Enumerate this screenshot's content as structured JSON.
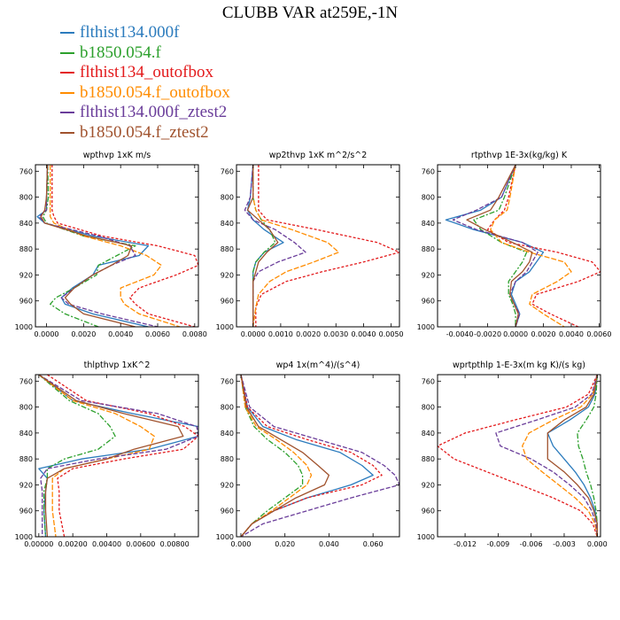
{
  "title": "CLUBB VAR at259E,-1N",
  "legend": [
    {
      "name": "flthist134.000f",
      "color": "#2b7bbd"
    },
    {
      "name": "b1850.054.f",
      "color": "#2ca02c"
    },
    {
      "name": "flthist134_outofbox",
      "color": "#e31a1c"
    },
    {
      "name": "b1850.054.f_outofbox",
      "color": "#ff8c00"
    },
    {
      "name": "flthist134.000f_ztest2",
      "color": "#6a3d9a"
    },
    {
      "name": "b1850.054.f_ztest2",
      "color": "#a0522d"
    }
  ],
  "chart_data": [
    {
      "type": "line",
      "title": "wpthvp   1xK m/s",
      "ylim": [
        1000,
        750
      ],
      "yticks": [
        760,
        800,
        840,
        880,
        920,
        960,
        1000
      ],
      "xlim": [
        -0.0006,
        0.0082
      ],
      "xticks": [
        0.0,
        0.002,
        0.004,
        0.006,
        0.008
      ],
      "xticklabels": [
        "0.0000",
        "0.0020",
        "0.0040",
        "0.0060",
        "0.0080"
      ],
      "y": [
        750,
        800,
        820,
        830,
        840,
        860,
        875,
        890,
        905,
        920,
        940,
        955,
        965,
        980,
        1000
      ],
      "series": [
        {
          "values": [
            5e-05,
            0.0,
            0.0,
            -0.0005,
            -0.0001,
            0.0025,
            0.0055,
            0.005,
            0.0028,
            0.0025,
            0.0014,
            0.0008,
            0.001,
            0.0025,
            0.0055
          ]
        },
        {
          "values": [
            6e-05,
            0.0001,
            0.0,
            -0.0002,
            0.0,
            0.002,
            0.0048,
            0.0038,
            0.0028,
            0.0027,
            0.0015,
            0.0005,
            0.0002,
            0.001,
            0.0028
          ]
        },
        {
          "values": [
            0.0003,
            0.0003,
            0.0003,
            0.0004,
            0.0006,
            0.003,
            0.006,
            0.008,
            0.0082,
            0.007,
            0.005,
            0.0045,
            0.0048,
            0.0055,
            0.008
          ]
        },
        {
          "values": [
            0.0002,
            0.0002,
            0.0002,
            0.0002,
            0.0004,
            0.002,
            0.004,
            0.0054,
            0.0062,
            0.0058,
            0.004,
            0.004,
            0.0042,
            0.005,
            0.0072
          ]
        },
        {
          "values": [
            5e-05,
            0.0,
            0.0,
            -0.0004,
            -0.0001,
            0.0028,
            0.0045,
            0.0048,
            0.0035,
            0.0025,
            0.0015,
            0.0008,
            0.0012,
            0.003,
            0.006
          ]
        },
        {
          "values": [
            5e-05,
            0.0,
            -0.0001,
            -0.0003,
            -0.0001,
            0.0022,
            0.0046,
            0.0044,
            0.0035,
            0.0025,
            0.0015,
            0.001,
            0.0013,
            0.002,
            0.0048
          ]
        }
      ]
    },
    {
      "type": "line",
      "title": "wp2thvp   1xK m^2/s^2",
      "ylim": [
        1000,
        750
      ],
      "yticks": [
        760,
        800,
        840,
        880,
        920,
        960,
        1000
      ],
      "xlim": [
        -0.0006,
        0.0053
      ],
      "xticks": [
        0.0,
        0.001,
        0.002,
        0.003,
        0.004,
        0.005
      ],
      "xticklabels": [
        "0.0000",
        "0.0010",
        "0.0020",
        "0.0030",
        "0.0040",
        "0.0050"
      ],
      "y": [
        750,
        800,
        820,
        835,
        850,
        870,
        885,
        900,
        915,
        930,
        950,
        970,
        1000
      ],
      "series": [
        {
          "values": [
            0.0,
            -0.0001,
            -0.0002,
            0.0,
            0.0004,
            0.0011,
            0.0004,
            0.0001,
            0.0,
            0.0,
            0.0,
            0.0,
            0.0
          ]
        },
        {
          "values": [
            0.0,
            0.0,
            0.0001,
            0.0003,
            0.0006,
            0.0008,
            0.0004,
            0.0001,
            0.0,
            0.0,
            0.0,
            0.0,
            0.0
          ]
        },
        {
          "values": [
            0.0002,
            0.0002,
            0.0002,
            0.0005,
            0.0023,
            0.0045,
            0.0053,
            0.004,
            0.0025,
            0.0012,
            0.0003,
            0.0001,
            0.0001
          ]
        },
        {
          "values": [
            0.0,
            0.0,
            0.0001,
            0.0003,
            0.0014,
            0.0027,
            0.0031,
            0.0022,
            0.0012,
            0.0006,
            0.0002,
            0.0001,
            0.0
          ]
        },
        {
          "values": [
            0.0,
            -0.0001,
            -0.0003,
            0.0,
            0.0008,
            0.0015,
            0.0019,
            0.0009,
            0.0002,
            0.0,
            0.0,
            0.0,
            0.0
          ]
        },
        {
          "values": [
            0.0,
            0.0,
            -0.0002,
            0.0002,
            0.0006,
            0.0009,
            0.0005,
            0.0002,
            0.0001,
            0.0,
            0.0,
            0.0,
            0.0
          ]
        }
      ]
    },
    {
      "type": "line",
      "title": "rtpthvp   1E-3x(kg/kg) K",
      "ylim": [
        1000,
        750
      ],
      "yticks": [
        760,
        800,
        840,
        880,
        920,
        960,
        1000
      ],
      "xlim": [
        -0.0056,
        0.0061
      ],
      "xticks": [
        -0.004,
        -0.002,
        0.0,
        0.002,
        0.004,
        0.006
      ],
      "xticklabels": [
        "-0.0040",
        "-0.0020",
        "0.0000",
        "0.0020",
        "0.0040",
        "0.0060"
      ],
      "y": [
        750,
        800,
        820,
        835,
        850,
        870,
        885,
        900,
        915,
        930,
        950,
        965,
        980,
        1000
      ],
      "series": [
        {
          "values": [
            0.0,
            -0.001,
            -0.0025,
            -0.005,
            -0.003,
            0.0005,
            0.002,
            0.0015,
            0.001,
            0.0,
            -0.0003,
            0.0,
            0.0003,
            0.0
          ]
        },
        {
          "values": [
            0.0,
            -0.0008,
            -0.0012,
            -0.003,
            -0.0025,
            -0.001,
            0.0008,
            0.0005,
            0.0,
            -0.0005,
            -0.0005,
            -0.0002,
            0.0,
            0.0
          ]
        },
        {
          "values": [
            0.0,
            -0.0005,
            -0.0008,
            -0.0015,
            -0.002,
            -0.0005,
            0.003,
            0.0055,
            0.0061,
            0.0045,
            0.0015,
            0.0012,
            0.0025,
            0.0045
          ]
        },
        {
          "values": [
            0.0,
            -0.0004,
            -0.0006,
            -0.0015,
            -0.0018,
            -0.001,
            0.001,
            0.0035,
            0.004,
            0.003,
            0.0012,
            0.001,
            0.002,
            0.0035
          ]
        },
        {
          "values": [
            0.0,
            -0.001,
            -0.0028,
            -0.0045,
            -0.0028,
            0.0005,
            0.0016,
            0.0012,
            0.0008,
            0.0,
            -0.0004,
            -0.0001,
            0.0003,
            0.0
          ]
        },
        {
          "values": [
            0.0,
            -0.0012,
            -0.0018,
            -0.0035,
            -0.0022,
            -0.0002,
            0.0012,
            0.001,
            0.0005,
            -0.0003,
            -0.0004,
            -0.0001,
            0.0002,
            0.0
          ]
        }
      ]
    },
    {
      "type": "line",
      "title": "thlpthvp   1xK^2",
      "ylim": [
        1000,
        750
      ],
      "yticks": [
        760,
        800,
        840,
        880,
        920,
        960,
        1000
      ],
      "xlim": [
        -0.0002,
        0.0094
      ],
      "xticks": [
        0.0,
        0.002,
        0.004,
        0.006,
        0.008
      ],
      "xticklabels": [
        "0.00000",
        "0.00200",
        "0.00400",
        "0.00600",
        "0.00800"
      ],
      "y": [
        750,
        790,
        810,
        830,
        845,
        865,
        880,
        895,
        910,
        930,
        960,
        1000
      ],
      "series": [
        {
          "values": [
            0.0,
            0.002,
            0.0055,
            0.0094,
            0.0094,
            0.0065,
            0.0025,
            0.0,
            0.0005,
            0.0004,
            0.0003,
            0.0004
          ]
        },
        {
          "values": [
            0.0,
            0.0018,
            0.0035,
            0.0042,
            0.0045,
            0.0035,
            0.0015,
            0.0005,
            0.0005,
            0.0003,
            0.0003,
            0.0004
          ]
        },
        {
          "values": [
            0.0005,
            0.0028,
            0.0065,
            0.0086,
            0.0094,
            0.0085,
            0.005,
            0.002,
            0.0011,
            0.0012,
            0.0012,
            0.0015
          ]
        },
        {
          "values": [
            0.0,
            0.002,
            0.0045,
            0.006,
            0.0068,
            0.0065,
            0.004,
            0.0015,
            0.0008,
            0.0008,
            0.0008,
            0.001
          ]
        },
        {
          "values": [
            0.0,
            0.0025,
            0.007,
            0.0093,
            0.0094,
            0.0075,
            0.0035,
            0.0005,
            0.0001,
            0.0002,
            0.0002,
            0.0002
          ]
        },
        {
          "values": [
            0.0,
            0.0022,
            0.005,
            0.0082,
            0.0085,
            0.0056,
            0.004,
            0.0015,
            0.0005,
            0.0004,
            0.0004,
            0.0005
          ]
        }
      ]
    },
    {
      "type": "line",
      "title": "wp4   1x(m^4)/(s^4)",
      "ylim": [
        1000,
        750
      ],
      "yticks": [
        760,
        800,
        840,
        880,
        920,
        960,
        1000
      ],
      "xlim": [
        -0.002,
        0.072
      ],
      "xticks": [
        0.0,
        0.02,
        0.04,
        0.06
      ],
      "xticklabels": [
        "0.000",
        "0.020",
        "0.040",
        "0.060"
      ],
      "y": [
        750,
        800,
        830,
        850,
        870,
        890,
        905,
        920,
        940,
        960,
        980,
        1000
      ],
      "series": [
        {
          "values": [
            0.0,
            0.003,
            0.01,
            0.025,
            0.045,
            0.055,
            0.06,
            0.05,
            0.03,
            0.015,
            0.005,
            0.0
          ]
        },
        {
          "values": [
            0.0,
            0.002,
            0.006,
            0.012,
            0.02,
            0.026,
            0.028,
            0.028,
            0.02,
            0.012,
            0.005,
            0.0
          ]
        },
        {
          "values": [
            0.0,
            0.003,
            0.012,
            0.03,
            0.05,
            0.06,
            0.064,
            0.055,
            0.03,
            0.015,
            0.005,
            0.0
          ]
        },
        {
          "values": [
            0.0,
            0.002,
            0.007,
            0.016,
            0.024,
            0.03,
            0.032,
            0.03,
            0.022,
            0.014,
            0.005,
            0.0
          ]
        },
        {
          "values": [
            0.0,
            0.004,
            0.015,
            0.035,
            0.055,
            0.065,
            0.07,
            0.072,
            0.05,
            0.03,
            0.01,
            0.0
          ]
        },
        {
          "values": [
            0.0,
            0.0025,
            0.008,
            0.018,
            0.028,
            0.035,
            0.04,
            0.038,
            0.025,
            0.015,
            0.005,
            0.0
          ]
        }
      ]
    },
    {
      "type": "line",
      "title": "wprtpthlp   1-E-3x(m kg K)/(s kg)",
      "ylim": [
        1000,
        750
      ],
      "yticks": [
        760,
        800,
        840,
        880,
        920,
        960,
        1000
      ],
      "xlim": [
        -0.0145,
        0.0003
      ],
      "xticks": [
        -0.012,
        -0.009,
        -0.006,
        -0.003,
        0.0
      ],
      "xticklabels": [
        "-0.012",
        "-0.009",
        "-0.006",
        "-0.003",
        "0.000"
      ],
      "y": [
        750,
        780,
        800,
        820,
        840,
        860,
        880,
        900,
        920,
        940,
        960,
        980,
        1000
      ],
      "series": [
        {
          "values": [
            0.0,
            -0.0002,
            -0.0008,
            -0.0025,
            -0.0045,
            -0.004,
            -0.003,
            -0.002,
            -0.0012,
            -0.0006,
            -0.0002,
            0.0,
            0.0
          ]
        },
        {
          "values": [
            0.0,
            -0.0001,
            -0.0003,
            -0.001,
            -0.0018,
            -0.0017,
            -0.0013,
            -0.001,
            -0.0006,
            -0.0003,
            -0.0001,
            0.0,
            0.0
          ]
        },
        {
          "values": [
            0.0,
            -0.0008,
            -0.0028,
            -0.0075,
            -0.012,
            -0.0145,
            -0.013,
            -0.01,
            -0.007,
            -0.004,
            -0.0015,
            -0.0004,
            0.0
          ]
        },
        {
          "values": [
            0.0,
            -0.0004,
            -0.0015,
            -0.004,
            -0.0062,
            -0.0068,
            -0.0064,
            -0.005,
            -0.0035,
            -0.002,
            -0.0008,
            -0.0002,
            0.0
          ]
        },
        {
          "values": [
            0.0,
            -0.0005,
            -0.002,
            -0.0055,
            -0.0092,
            -0.0088,
            -0.006,
            -0.004,
            -0.0025,
            -0.0012,
            -0.0005,
            -0.0001,
            0.0
          ]
        },
        {
          "values": [
            0.0,
            -0.0003,
            -0.001,
            -0.003,
            -0.0045,
            -0.0045,
            -0.0045,
            -0.003,
            -0.0018,
            -0.0008,
            -0.0003,
            0.0,
            0.0
          ]
        }
      ]
    }
  ]
}
